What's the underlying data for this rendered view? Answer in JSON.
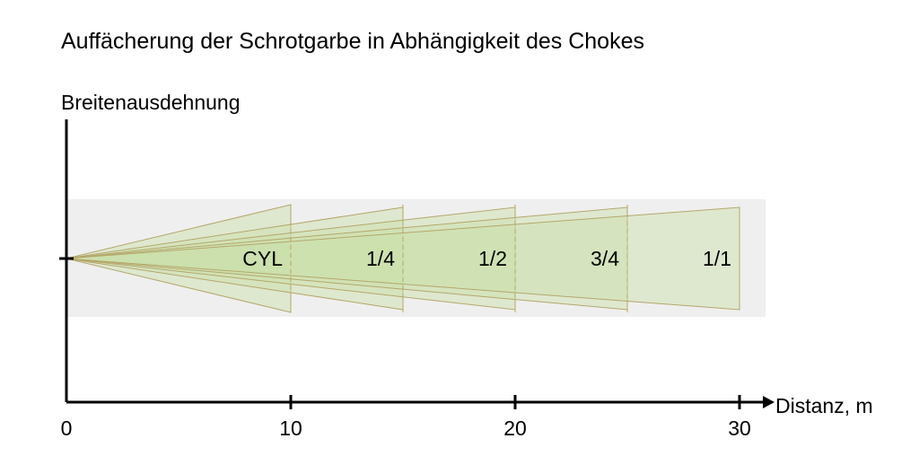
{
  "chart_data": {
    "type": "diagram",
    "title": "Auffächerung der Schrotgarbe in Abhängigkeit des Chokes",
    "xlabel": "Distanz, m",
    "ylabel": "Breitenausdehnung",
    "xlim": [
      0,
      30
    ],
    "x_ticks": [
      0,
      10,
      20,
      30
    ],
    "fans": [
      {
        "label": "CYL",
        "distance": 10,
        "spread": 1.0
      },
      {
        "label": "1/4",
        "distance": 15,
        "spread": 0.95
      },
      {
        "label": "1/2",
        "distance": 20,
        "spread": 0.95
      },
      {
        "label": "3/4",
        "distance": 25,
        "spread": 0.95
      },
      {
        "label": "1/1",
        "distance": 30,
        "spread": 0.95
      }
    ],
    "colors": {
      "fan_fill": "#c9dfa8",
      "fan_stroke": "#b5a66a",
      "band": "#efefef",
      "axis": "#000000"
    }
  }
}
